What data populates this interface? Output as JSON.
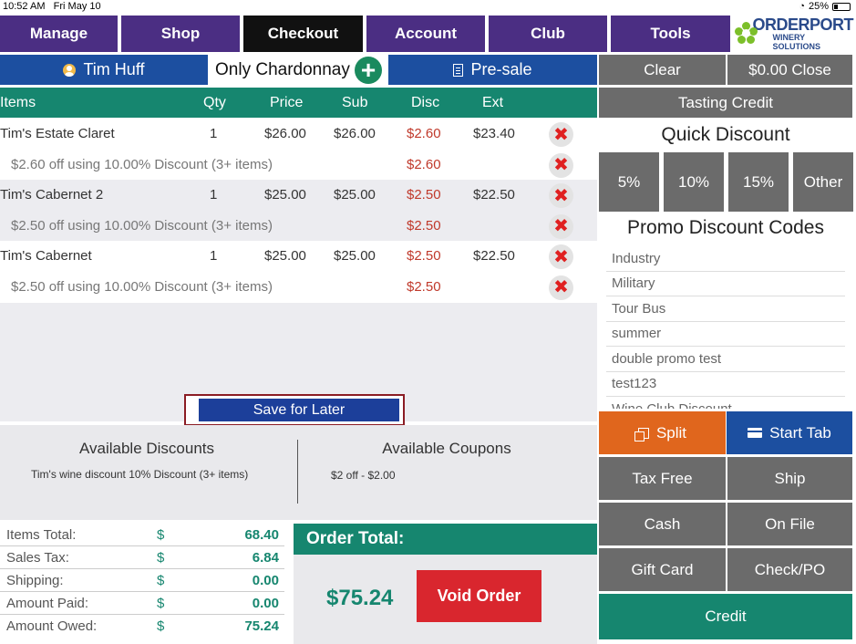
{
  "status_bar": {
    "time": "10:52 AM",
    "date": "Fri May 10",
    "battery": "25%",
    "battery_level": 0.25
  },
  "nav": {
    "items": [
      {
        "label": "Manage"
      },
      {
        "label": "Shop"
      },
      {
        "label": "Checkout",
        "active": true
      },
      {
        "label": "Account"
      },
      {
        "label": "Club"
      },
      {
        "label": "Tools"
      }
    ],
    "logo_main": "ORDERPORT",
    "logo_sub": "WINERY SOLUTIONS"
  },
  "customer": {
    "name": "Tim Huff",
    "wine_club": "Only Chardonnay",
    "add_icon": "plus-circle-icon",
    "presale_label": "Pre-sale"
  },
  "table": {
    "headers": {
      "items": "Items",
      "qty": "Qty",
      "price": "Price",
      "sub": "Sub",
      "disc": "Disc",
      "ext": "Ext"
    },
    "rows": [
      {
        "item": "Tim's Estate Claret",
        "qty": "1",
        "price": "$26.00",
        "sub": "$26.00",
        "disc": "$2.60",
        "ext": "$23.40"
      },
      {
        "item": "$2.60 off using 10.00% Discount (3+ items)",
        "disc": "$2.60"
      },
      {
        "item": "Tim's Cabernet 2",
        "qty": "1",
        "price": "$25.00",
        "sub": "$25.00",
        "disc": "$2.50",
        "ext": "$22.50"
      },
      {
        "item": "$2.50 off using 10.00% Discount (3+ items)",
        "disc": "$2.50"
      },
      {
        "item": "Tim's Cabernet",
        "qty": "1",
        "price": "$25.00",
        "sub": "$25.00",
        "disc": "$2.50",
        "ext": "$22.50"
      },
      {
        "item": "$2.50 off using 10.00% Discount (3+ items)",
        "disc": "$2.50"
      }
    ],
    "remove_symbol": "✖"
  },
  "save_for_later": "Save for Later",
  "discounts": {
    "available_discounts_title": "Available Discounts",
    "available_discounts_item": "Tim's wine discount 10% Discount (3+ items)",
    "available_coupons_title": "Available Coupons",
    "available_coupons_item": "$2 off - $2.00"
  },
  "totals": {
    "currency": "$",
    "rows": [
      {
        "label": "Items Total:",
        "value": "68.40"
      },
      {
        "label": "Sales Tax:",
        "value": "6.84"
      },
      {
        "label": "Shipping:",
        "value": "0.00"
      },
      {
        "label": "Amount Paid:",
        "value": "0.00"
      },
      {
        "label": "Amount Owed:",
        "value": "75.24"
      }
    ]
  },
  "order_total": {
    "label": "Order Total:",
    "amount": "$75.24",
    "void_label": "Void Order"
  },
  "right_panel": {
    "clear": "Clear",
    "close": "$0.00 Close",
    "tasting_credit": "Tasting Credit",
    "quick_discount_title": "Quick Discount",
    "quick_discounts": [
      "5%",
      "10%",
      "15%",
      "Other"
    ],
    "promo_title": "Promo Discount Codes",
    "promo_codes": [
      "Industry",
      "Military",
      "Tour Bus",
      "summer",
      "double promo test",
      "test123",
      "Wine Club Discount"
    ],
    "split": "Split",
    "start_tab": "Start Tab",
    "tax_free": "Tax Free",
    "ship": "Ship",
    "cash": "Cash",
    "on_file": "On File",
    "gift_card": "Gift Card",
    "check_po": "Check/PO",
    "credit": "Credit"
  },
  "colors": {
    "nav_purple": "#4b2e83",
    "teal": "#16866f",
    "blue": "#1c4fa0",
    "orange": "#e0661d",
    "red": "#d9262e",
    "gray": "#6b6b6b"
  }
}
